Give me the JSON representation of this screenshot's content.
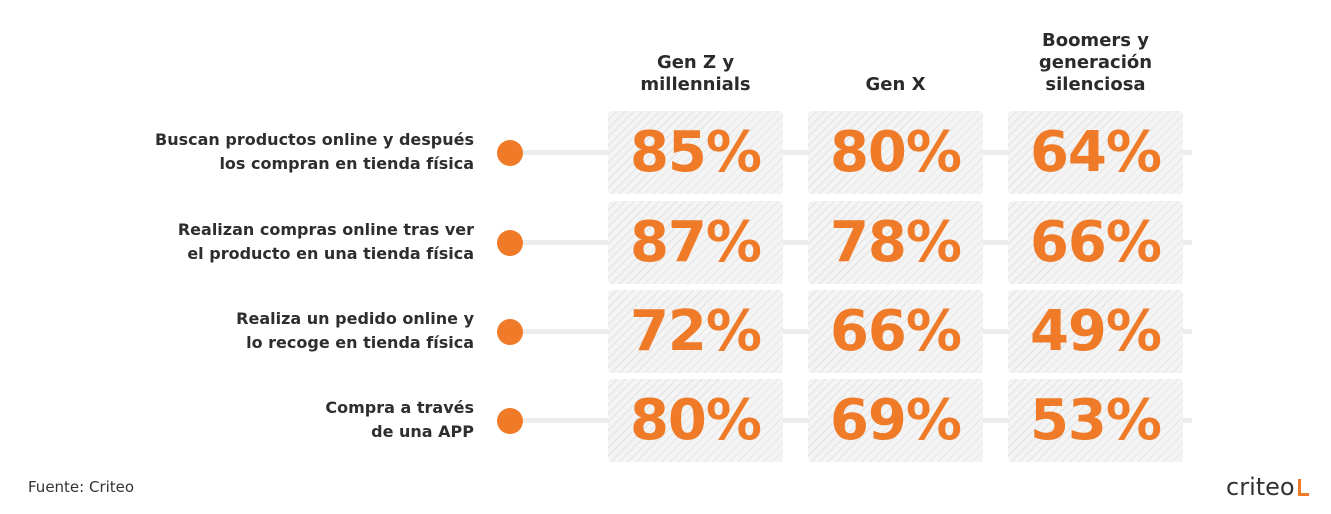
{
  "colors": {
    "accent": "#ef7a28",
    "text": "#2b2b2b",
    "cell_bg": "#f4f4f4",
    "line": "#ececec"
  },
  "source": "Fuente: Criteo",
  "logo": {
    "text": "criteo",
    "icon": "criteo-l-mark-icon"
  },
  "chart_data": {
    "type": "table",
    "columns": [
      "Gen Z y\nmillennials",
      "Gen X",
      "Boomers y\ngeneración\nsilenciosa"
    ],
    "rows": [
      {
        "label": "Buscan productos online y después\nlos compran en tienda física",
        "values": [
          "85%",
          "80%",
          "64%"
        ]
      },
      {
        "label": "Realizan compras online tras ver\nel producto en una tienda física",
        "values": [
          "87%",
          "78%",
          "66%"
        ]
      },
      {
        "label": "Realiza un pedido online y\nlo recoge en tienda física",
        "values": [
          "72%",
          "66%",
          "49%"
        ]
      },
      {
        "label": "Compra a través\nde una APP",
        "values": [
          "80%",
          "69%",
          "53%"
        ]
      }
    ]
  }
}
